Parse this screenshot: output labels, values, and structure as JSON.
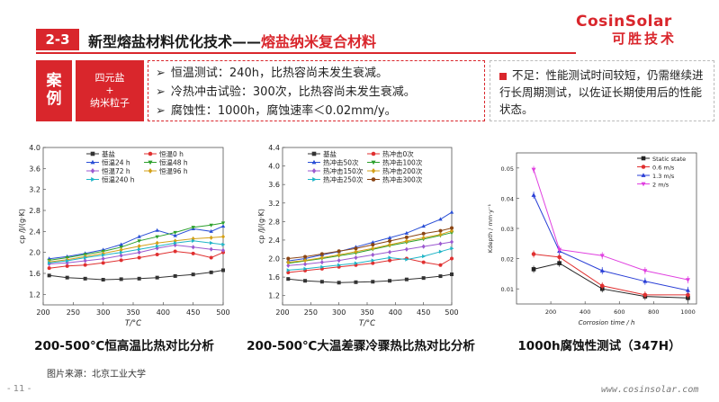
{
  "header": {
    "section_number": "2-3",
    "title_main": "新型熔盐材料优化技术——",
    "title_highlight": "熔盐纳米复合材料"
  },
  "logo": {
    "en": "CosinSolar",
    "cn": "可胜技术"
  },
  "case": {
    "label_line1": "案",
    "label_line2": "例",
    "material_line1": "四元盐",
    "material_line2": "+",
    "material_line3": "纳米粒子",
    "points": [
      "恒温测试：240h，比热容尚未发生衰减。",
      "冷热冲击试验：300次，比热容尚未发生衰减。",
      "腐蚀性：1000h，腐蚀速率＜0.02mm/y。"
    ],
    "shortcoming": "不足：性能测试时间较短，仍需继续进行长周期测试，以佐证长期使用后的性能状态。"
  },
  "chart_data": [
    {
      "type": "line",
      "title": "",
      "xlabel": "T/°C",
      "ylabel": "cp /J/(g·K)",
      "xlim": [
        200,
        500
      ],
      "ylim": [
        1.0,
        4.0
      ],
      "xticks": [
        200,
        250,
        300,
        350,
        400,
        450,
        500
      ],
      "yticks": [
        1.2,
        1.6,
        2.0,
        2.4,
        2.8,
        3.2,
        3.6,
        4.0
      ],
      "legend": [
        "基盐",
        "恒温0 h",
        "恒温24 h",
        "恒温48 h",
        "恒温72 h",
        "恒温96 h",
        "恒温240 h"
      ],
      "x": [
        210,
        240,
        270,
        300,
        330,
        360,
        390,
        420,
        450,
        480,
        500
      ],
      "series": [
        {
          "name": "基盐",
          "color": "#333333",
          "marker": "square",
          "values": [
            1.56,
            1.52,
            1.5,
            1.48,
            1.49,
            1.5,
            1.52,
            1.55,
            1.58,
            1.62,
            1.66
          ]
        },
        {
          "name": "恒温0 h",
          "color": "#e03030",
          "marker": "circle",
          "values": [
            1.7,
            1.74,
            1.76,
            1.8,
            1.85,
            1.9,
            1.96,
            2.02,
            1.98,
            1.9,
            2.0
          ]
        },
        {
          "name": "恒温24 h",
          "color": "#2a4fd6",
          "marker": "triangle",
          "values": [
            1.88,
            1.92,
            1.98,
            2.05,
            2.15,
            2.3,
            2.42,
            2.32,
            2.45,
            2.4,
            2.5
          ]
        },
        {
          "name": "恒温48 h",
          "color": "#2ca02c",
          "marker": "triangle-down",
          "values": [
            1.85,
            1.9,
            1.96,
            2.02,
            2.1,
            2.22,
            2.3,
            2.38,
            2.48,
            2.52,
            2.56
          ]
        },
        {
          "name": "恒温72 h",
          "color": "#9b59d0",
          "marker": "diamond",
          "values": [
            1.78,
            1.8,
            1.84,
            1.88,
            1.94,
            2.0,
            2.08,
            2.14,
            2.1,
            2.06,
            2.04
          ]
        },
        {
          "name": "恒温96 h",
          "color": "#d4a017",
          "marker": "diamond",
          "values": [
            1.82,
            1.86,
            1.92,
            1.98,
            2.05,
            2.12,
            2.18,
            2.22,
            2.26,
            2.28,
            2.3
          ]
        },
        {
          "name": "恒温240 h",
          "color": "#1fb5c7",
          "marker": "triangle-right",
          "values": [
            1.8,
            1.84,
            1.9,
            1.95,
            2.0,
            2.06,
            2.12,
            2.18,
            2.22,
            2.18,
            2.15
          ]
        }
      ]
    },
    {
      "type": "line",
      "title": "",
      "xlabel": "T/°C",
      "ylabel": "cp /J/(g·K)",
      "xlim": [
        200,
        500
      ],
      "ylim": [
        1.0,
        4.4
      ],
      "xticks": [
        200,
        250,
        300,
        350,
        400,
        450,
        500
      ],
      "yticks": [
        1.2,
        1.6,
        2.0,
        2.4,
        2.8,
        3.2,
        3.6,
        4.0,
        4.4
      ],
      "legend": [
        "基盐",
        "热冲击0次",
        "热冲击50次",
        "热冲击100次",
        "热冲击150次",
        "热冲击200次",
        "热冲击250次",
        "热冲击300次"
      ],
      "x": [
        210,
        240,
        270,
        300,
        330,
        360,
        390,
        420,
        450,
        480,
        500
      ],
      "series": [
        {
          "name": "基盐",
          "color": "#333333",
          "marker": "square",
          "values": [
            1.56,
            1.52,
            1.5,
            1.48,
            1.49,
            1.5,
            1.52,
            1.55,
            1.58,
            1.62,
            1.66
          ]
        },
        {
          "name": "热冲击0次",
          "color": "#e03030",
          "marker": "circle",
          "values": [
            1.7,
            1.74,
            1.78,
            1.82,
            1.86,
            1.9,
            1.96,
            2.0,
            1.92,
            1.86,
            2.0
          ]
        },
        {
          "name": "热冲击50次",
          "color": "#2a4fd6",
          "marker": "triangle",
          "values": [
            1.95,
            2.0,
            2.08,
            2.15,
            2.25,
            2.35,
            2.45,
            2.55,
            2.7,
            2.85,
            3.0
          ]
        },
        {
          "name": "热冲击100次",
          "color": "#2ca02c",
          "marker": "triangle-down",
          "values": [
            1.9,
            1.95,
            2.0,
            2.06,
            2.12,
            2.2,
            2.28,
            2.35,
            2.42,
            2.5,
            2.56
          ]
        },
        {
          "name": "热冲击150次",
          "color": "#9b59d0",
          "marker": "diamond",
          "values": [
            1.85,
            1.88,
            1.92,
            1.96,
            2.02,
            2.08,
            2.14,
            2.2,
            2.26,
            2.32,
            2.36
          ]
        },
        {
          "name": "热冲击200次",
          "color": "#d4a017",
          "marker": "diamond",
          "values": [
            1.92,
            1.96,
            2.02,
            2.08,
            2.15,
            2.22,
            2.3,
            2.38,
            2.45,
            2.52,
            2.6
          ]
        },
        {
          "name": "热冲击250次",
          "color": "#1fb5c7",
          "marker": "triangle-right",
          "values": [
            1.75,
            1.78,
            1.82,
            1.86,
            1.9,
            1.96,
            2.02,
            1.98,
            2.05,
            2.15,
            2.22
          ]
        },
        {
          "name": "热冲击300次",
          "color": "#8b4513",
          "marker": "circle",
          "values": [
            2.0,
            2.04,
            2.1,
            2.16,
            2.22,
            2.3,
            2.38,
            2.46,
            2.54,
            2.6,
            2.66
          ]
        }
      ]
    },
    {
      "type": "line",
      "title": "",
      "xlabel": "Corrosion time / h",
      "ylabel": "Kdepth / mm·y⁻¹",
      "xlim": [
        0,
        1050
      ],
      "ylim": [
        0.005,
        0.055
      ],
      "xticks": [
        200,
        400,
        600,
        800,
        1000
      ],
      "xtick_labels": [
        "200",
        "400",
        "600",
        "800",
        "1000"
      ],
      "yticks": [
        0.01,
        0.02,
        0.03,
        0.04,
        0.05
      ],
      "legend": [
        "Static state",
        "0.6 m/s",
        "1.3 m/s",
        "2 m/s"
      ],
      "x": [
        100,
        250,
        500,
        750,
        1000
      ],
      "series": [
        {
          "name": "Static state",
          "color": "#222222",
          "marker": "square",
          "values": [
            0.0165,
            0.0185,
            0.01,
            0.0075,
            0.007
          ]
        },
        {
          "name": "0.6 m/s",
          "color": "#e03030",
          "marker": "circle",
          "values": [
            0.0215,
            0.0205,
            0.011,
            0.008,
            0.008
          ]
        },
        {
          "name": "1.3 m/s",
          "color": "#2a3fd6",
          "marker": "triangle",
          "values": [
            0.041,
            0.0225,
            0.016,
            0.0125,
            0.0095
          ]
        },
        {
          "name": "2 m/s",
          "color": "#e040e0",
          "marker": "triangle-down",
          "values": [
            0.0495,
            0.023,
            0.021,
            0.016,
            0.013
          ]
        }
      ]
    }
  ],
  "captions": {
    "chart1": "200-500℃恒高温比热对比分析",
    "chart2": "200-500℃大温差骤冷骤热比热对比分析",
    "chart3": "1000h腐蚀性测试（347H）"
  },
  "footer": {
    "source": "图片来源：北京工业大学",
    "page": "- 11 -",
    "website": "www.cosinsolar.com"
  }
}
